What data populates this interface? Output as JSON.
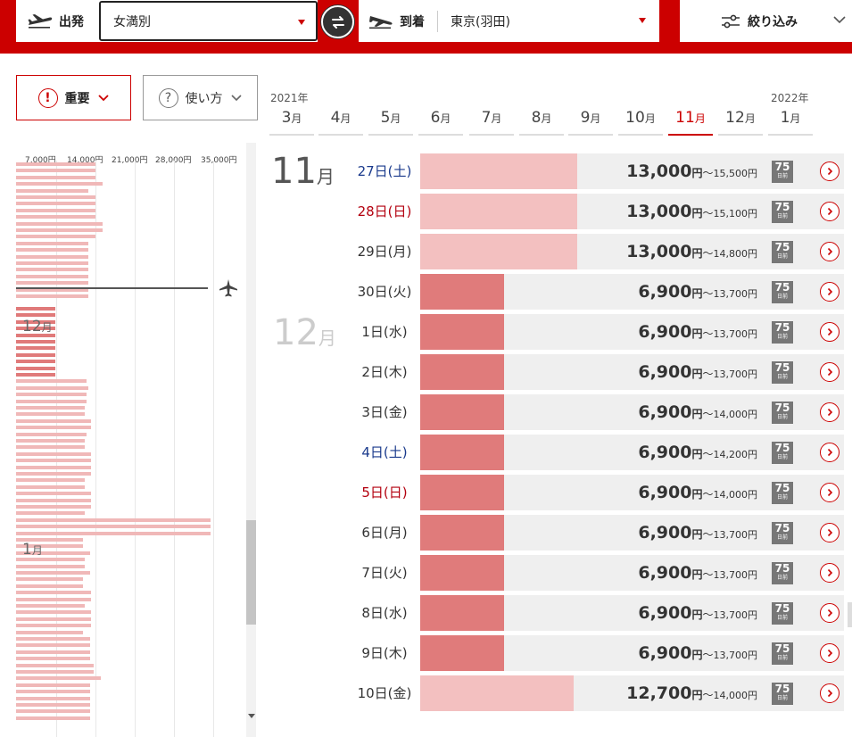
{
  "search": {
    "departure_label": "出発",
    "departure_value": "女満別",
    "arrival_label": "到着",
    "arrival_value": "東京(羽田)",
    "filter_label": "絞り込み"
  },
  "buttons": {
    "important_label": "重要",
    "howto_label": "使い方",
    "important_icon": "!",
    "howto_icon": "?"
  },
  "years": {
    "left": "2021年",
    "right": "2022年"
  },
  "month_tabs": [
    {
      "num": "3",
      "suf": "月"
    },
    {
      "num": "4",
      "suf": "月"
    },
    {
      "num": "5",
      "suf": "月"
    },
    {
      "num": "6",
      "suf": "月"
    },
    {
      "num": "7",
      "suf": "月"
    },
    {
      "num": "8",
      "suf": "月"
    },
    {
      "num": "9",
      "suf": "月"
    },
    {
      "num": "10",
      "suf": "月"
    },
    {
      "num": "11",
      "suf": "月",
      "active": true
    },
    {
      "num": "12",
      "suf": "月"
    },
    {
      "num": "1",
      "suf": "月"
    }
  ],
  "mini_chart": {
    "axis": [
      "7,000円",
      "14,000円",
      "21,000円",
      "28,000円",
      "35,000円"
    ],
    "axis_values": [
      7000,
      14000,
      21000,
      28000,
      35000
    ],
    "month_labels": [
      {
        "num": "12",
        "suf": "月"
      },
      {
        "num": "1",
        "suf": "月"
      }
    ]
  },
  "list": {
    "month_headers": [
      {
        "num": "11",
        "suf": "月"
      },
      {
        "num": "12",
        "suf": "月"
      }
    ],
    "yen_unit": "円",
    "tilde": "～",
    "badge_num": "75",
    "badge_text": "日前",
    "price_scale_max": 35000,
    "rows": [
      {
        "date": "27日(土)",
        "day": "sat",
        "min": "13,000",
        "max": "15,500円",
        "value": 13000
      },
      {
        "date": "28日(日)",
        "day": "sun",
        "min": "13,000",
        "max": "15,100円",
        "value": 13000
      },
      {
        "date": "29日(月)",
        "day": "",
        "min": "13,000",
        "max": "14,800円",
        "value": 13000
      },
      {
        "date": "30日(火)",
        "day": "",
        "min": "6,900",
        "max": "13,700円",
        "value": 6900
      },
      {
        "date": "1日(水)",
        "day": "",
        "min": "6,900",
        "max": "13,700円",
        "value": 6900
      },
      {
        "date": "2日(木)",
        "day": "",
        "min": "6,900",
        "max": "13,700円",
        "value": 6900
      },
      {
        "date": "3日(金)",
        "day": "",
        "min": "6,900",
        "max": "14,000円",
        "value": 6900
      },
      {
        "date": "4日(土)",
        "day": "sat",
        "min": "6,900",
        "max": "14,200円",
        "value": 6900
      },
      {
        "date": "5日(日)",
        "day": "sun",
        "min": "6,900",
        "max": "14,000円",
        "value": 6900
      },
      {
        "date": "6日(月)",
        "day": "",
        "min": "6,900",
        "max": "13,700円",
        "value": 6900
      },
      {
        "date": "7日(火)",
        "day": "",
        "min": "6,900",
        "max": "13,700円",
        "value": 6900
      },
      {
        "date": "8日(水)",
        "day": "",
        "min": "6,900",
        "max": "13,700円",
        "value": 6900
      },
      {
        "date": "9日(木)",
        "day": "",
        "min": "6,900",
        "max": "13,700円",
        "value": 6900
      },
      {
        "date": "10日(金)",
        "day": "",
        "min": "12,700",
        "max": "14,000円",
        "value": 12700
      }
    ]
  },
  "colors": {
    "brand_red": "#cc0000",
    "bar_high": "#f3c0c0",
    "bar_low": "#e07b7b"
  }
}
